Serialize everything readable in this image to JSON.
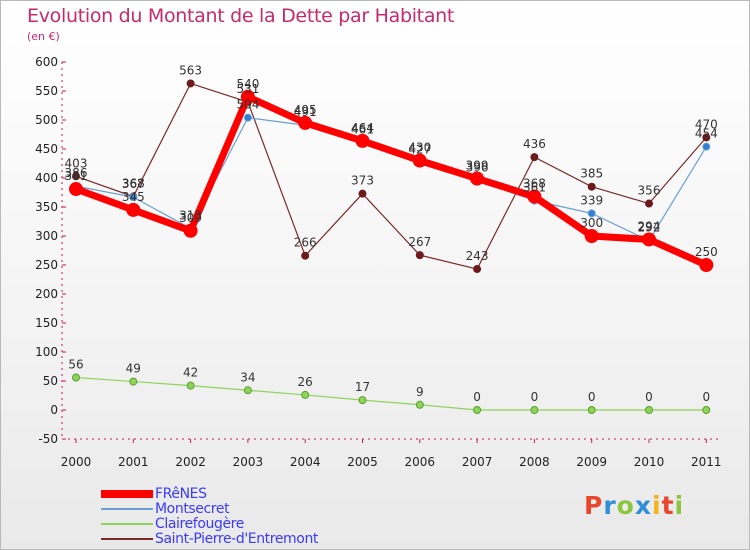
{
  "chart_data": {
    "type": "line",
    "title": "Evolution du Montant de la Dette par Habitant",
    "subtitle": "(en €)",
    "x": [
      "2000",
      "2001",
      "2002",
      "2003",
      "2004",
      "2005",
      "2006",
      "2007",
      "2008",
      "2009",
      "2010",
      "2011"
    ],
    "ylim": [
      -50,
      600
    ],
    "yticks": [
      -50,
      0,
      50,
      100,
      150,
      200,
      250,
      300,
      350,
      400,
      450,
      500,
      550,
      600
    ],
    "grid": false,
    "legend_position": "bottom-left",
    "series": [
      {
        "name": "FRêNES",
        "color": "#ff0000",
        "values": [
          381,
          345,
          309,
          540,
          495,
          464,
          430,
          399,
          368,
          300,
          294,
          250
        ]
      },
      {
        "name": "Montsecret",
        "color": "#6a9fd4",
        "values": [
          386,
          367,
          313,
          504,
          491,
          461,
          427,
          396,
          361,
          339,
          292,
          454
        ]
      },
      {
        "name": "Clairefougère",
        "color": "#8ed45a",
        "values": [
          56,
          49,
          42,
          34,
          26,
          17,
          9,
          0,
          0,
          0,
          0,
          0
        ]
      },
      {
        "name": "Saint-Pierre-d'Entremont",
        "color": "#7a2a2a",
        "values": [
          403,
          368,
          563,
          531,
          266,
          373,
          267,
          243,
          436,
          385,
          356,
          470
        ]
      }
    ]
  },
  "logo": {
    "text": "Proxiti",
    "colors": [
      "#e8452c",
      "#2f8fd8",
      "#8cc63f",
      "#2f8fd8",
      "#f7b21a",
      "#e8452c",
      "#8cc63f"
    ]
  }
}
